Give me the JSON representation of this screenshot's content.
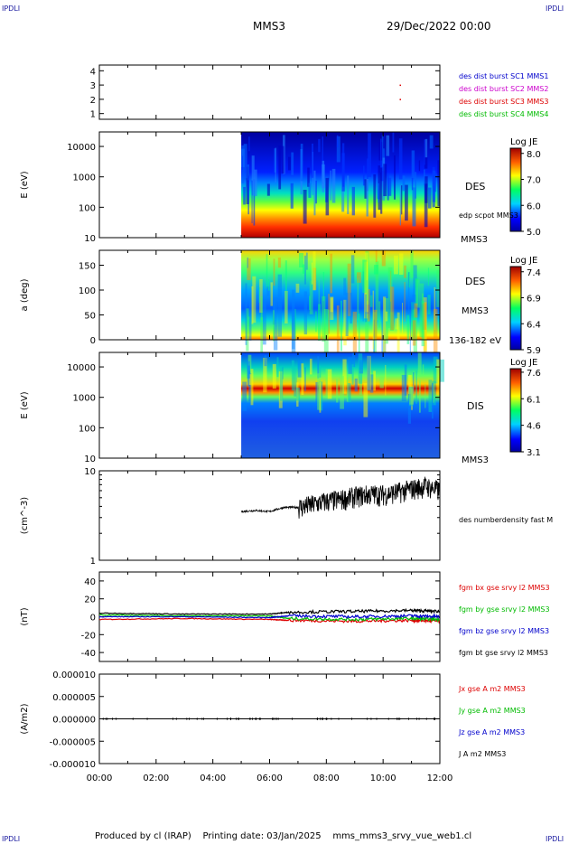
{
  "header": {
    "corner_label": "IPDLI",
    "spacecraft": "MMS3",
    "datetime": "29/Dec/2022 00:00"
  },
  "footer": {
    "produced_by": "Produced by cl (IRAP)",
    "printing_date": "Printing date: 03/Jan/2025",
    "filename": "mms_mms3_srvy_vue_web1.cl"
  },
  "colors": {
    "sc1": "#0000cc",
    "sc2": "#cc00cc",
    "sc3": "#dd0000",
    "sc4": "#00bb00",
    "black": "#000000"
  },
  "chart_data": [
    {
      "type": "scatter",
      "panel": "burst-availability",
      "ylim": [
        0.6,
        4.4
      ],
      "yticks": [
        "1",
        "2",
        "3",
        "4"
      ],
      "legend": [
        "des dist burst SC1 MMS1",
        "des dist burst SC2 MMS2",
        "des dist burst SC3 MMS3",
        "des dist burst SC4 MMS4"
      ],
      "points": [
        {
          "x": "10:35",
          "y": 3
        },
        {
          "x": "10:35",
          "y": 2
        }
      ]
    },
    {
      "type": "heatmap",
      "panel": "des-energy-spectrogram",
      "ylabel": "E (eV)",
      "yscale": "log",
      "ylim": [
        10,
        30000
      ],
      "yticks": [
        "10",
        "100",
        "1000",
        "10000"
      ],
      "data_start": "05:00",
      "colorbar_title": "Log JE",
      "colorbar_range": [
        5.0,
        8.2
      ],
      "colorbar_ticks": [
        "5.0",
        "6.0",
        "7.0",
        "8.0"
      ],
      "labels": [
        "DES",
        "edp scpot MMS3",
        "MMS3"
      ]
    },
    {
      "type": "heatmap",
      "panel": "des-pitch-angle",
      "ylabel": "a (deg)",
      "ylim": [
        0,
        180
      ],
      "yticks": [
        "0",
        "50",
        "100",
        "150"
      ],
      "data_start": "05:00",
      "colorbar_title": "Log JE",
      "colorbar_range": [
        5.9,
        7.5
      ],
      "colorbar_ticks": [
        "5.9",
        "6.4",
        "6.9",
        "7.4"
      ],
      "labels": [
        "DES",
        "MMS3",
        "136-182 eV"
      ]
    },
    {
      "type": "heatmap",
      "panel": "dis-energy-spectrogram",
      "ylabel": "E (eV)",
      "yscale": "log",
      "ylim": [
        10,
        30000
      ],
      "yticks": [
        "10",
        "100",
        "1000",
        "10000"
      ],
      "data_start": "05:00",
      "colorbar_title": "Log JE",
      "colorbar_range": [
        3.1,
        7.8
      ],
      "colorbar_ticks": [
        "3.1",
        "4.6",
        "6.1",
        "7.6"
      ],
      "labels": [
        "DIS",
        "MMS3"
      ]
    },
    {
      "type": "line",
      "panel": "number-density",
      "ylabel": "(cm^-3)",
      "yscale": "log",
      "ylim": [
        1,
        10
      ],
      "yticks": [
        "1",
        "10"
      ],
      "legend": [
        "des numberdensity fast M"
      ],
      "series": [
        {
          "x": [
            "05:00",
            "05:30",
            "06:00",
            "06:30",
            "07:00",
            "07:30",
            "08:00",
            "08:30",
            "09:00",
            "09:30",
            "10:00",
            "10:30",
            "11:00",
            "11:30",
            "12:00"
          ],
          "y": [
            3.5,
            3.6,
            3.5,
            3.9,
            3.9,
            4.2,
            4.6,
            4.8,
            5.2,
            5.5,
            5.5,
            5.8,
            6.3,
            6.8,
            6.0
          ]
        }
      ]
    },
    {
      "type": "line",
      "panel": "magnetic-field",
      "ylabel": "(nT)",
      "ylim": [
        -50,
        50
      ],
      "yticks": [
        "-40",
        "-20",
        "0",
        "20",
        "40"
      ],
      "series": [
        {
          "name": "fgm bx gse srvy l2 MMS3",
          "x": [
            "00:00",
            "03:00",
            "06:00",
            "06:40",
            "09:00",
            "11:00",
            "12:00"
          ],
          "y": [
            -3,
            -2,
            -3,
            -4,
            -5,
            -4,
            -5
          ]
        },
        {
          "name": "fgm by gse srvy l2 MMS3",
          "x": [
            "00:00",
            "03:00",
            "06:00",
            "06:40",
            "09:00",
            "11:00",
            "12:00"
          ],
          "y": [
            2,
            1,
            1,
            -2,
            -3,
            -2,
            -3
          ]
        },
        {
          "name": "fgm bz gse srvy l2 MMS3",
          "x": [
            "00:00",
            "03:00",
            "06:00",
            "06:40",
            "09:00",
            "11:00",
            "12:00"
          ],
          "y": [
            0,
            0,
            -1,
            1,
            0,
            1,
            0
          ]
        },
        {
          "name": "fgm bt gse srvy l2 MMS3",
          "x": [
            "00:00",
            "03:00",
            "06:00",
            "06:40",
            "09:00",
            "11:00",
            "12:00"
          ],
          "y": [
            4,
            3,
            3,
            5,
            6,
            7,
            6
          ]
        }
      ]
    },
    {
      "type": "line",
      "panel": "current-density",
      "ylabel": "(A/m2)",
      "ylim": [
        -1e-05,
        1e-05
      ],
      "yticks": [
        "-0.000010",
        "-0.000005",
        "0.000000",
        "0.000005",
        "0.000010"
      ],
      "series": [
        {
          "name": "Jx gse A m2 MMS3",
          "x": [
            "00:00",
            "12:00"
          ],
          "y": [
            0,
            0
          ]
        },
        {
          "name": "Jy gse A m2 MMS3",
          "x": [
            "00:00",
            "12:00"
          ],
          "y": [
            0,
            0
          ]
        },
        {
          "name": "Jz gse A m2 MMS3",
          "x": [
            "00:00",
            "12:00"
          ],
          "y": [
            0,
            0
          ]
        },
        {
          "name": "J A m2 MMS3",
          "x": [
            "00:00",
            "12:00"
          ],
          "y": [
            0,
            0
          ]
        }
      ]
    }
  ],
  "xaxis": {
    "range": [
      "00:00",
      "12:00"
    ],
    "ticks": [
      "00:00",
      "02:00",
      "04:00",
      "06:00",
      "08:00",
      "10:00",
      "12:00"
    ]
  }
}
